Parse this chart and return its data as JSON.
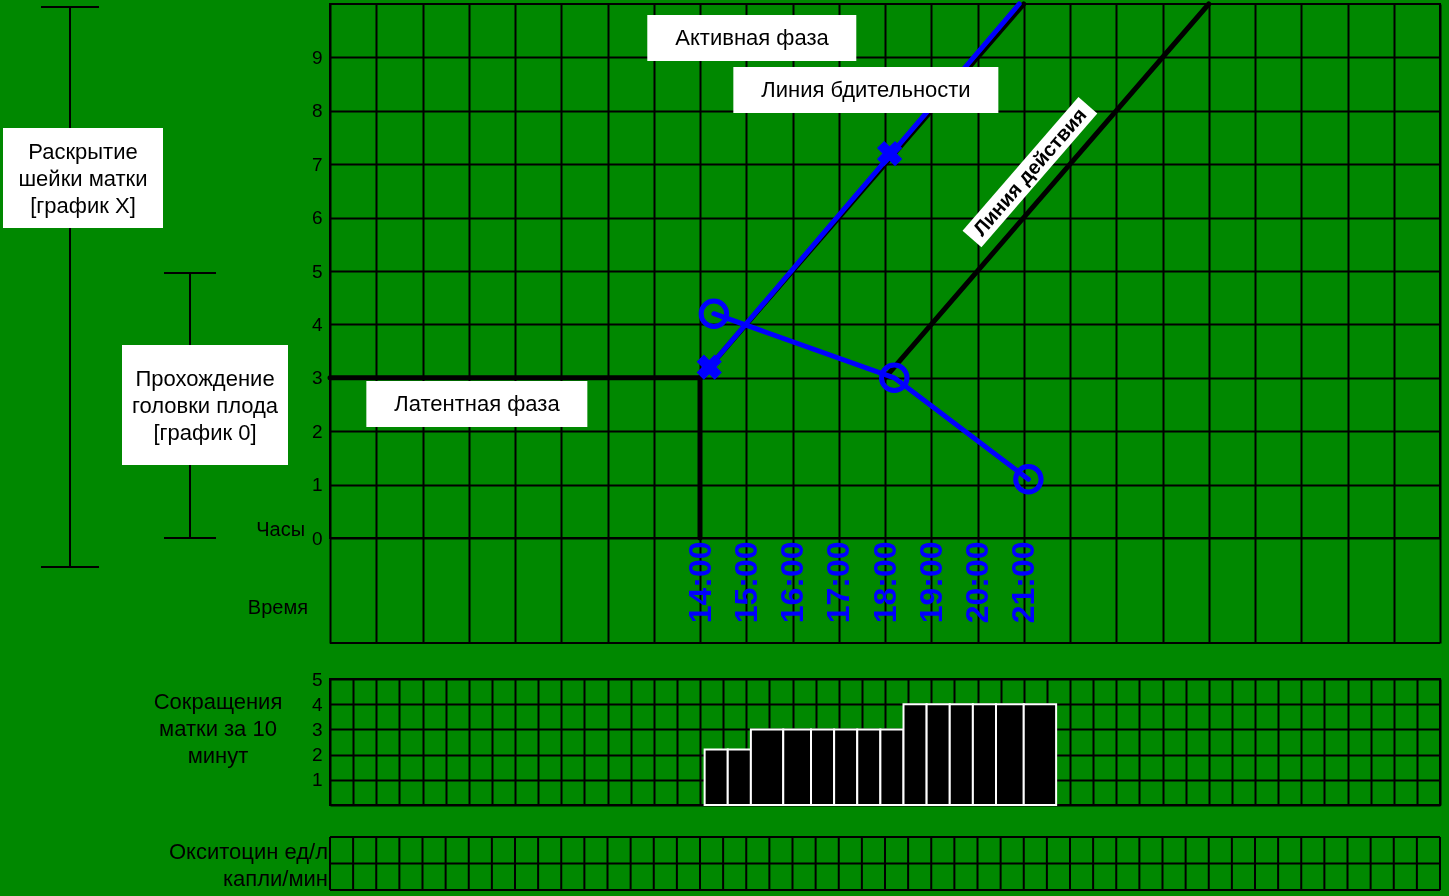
{
  "chart_data": [
    {
      "type": "line",
      "xlabel": "Время",
      "ylabel": "Раскрытие шейки матки [график X]",
      "xlim": [
        6,
        30
      ],
      "ylim": [
        0,
        10
      ],
      "xticks": [
        {
          "value": 6,
          "label": null
        },
        {
          "value": 7,
          "label": null
        },
        {
          "value": 8,
          "label": null
        },
        {
          "value": 9,
          "label": null
        },
        {
          "value": 10,
          "label": null
        },
        {
          "value": 11,
          "label": null
        },
        {
          "value": 12,
          "label": null
        },
        {
          "value": 13,
          "label": null
        },
        {
          "value": 14,
          "label": "14:00"
        },
        {
          "value": 15,
          "label": "15:00"
        },
        {
          "value": 16,
          "label": "16:00"
        },
        {
          "value": 17,
          "label": "17:00"
        },
        {
          "value": 18,
          "label": "18:00"
        },
        {
          "value": 19,
          "label": "19:00"
        },
        {
          "value": 20,
          "label": "20:00"
        },
        {
          "value": 21,
          "label": "21:00"
        },
        {
          "value": 22,
          "label": null
        },
        {
          "value": 23,
          "label": null
        },
        {
          "value": 24,
          "label": null
        },
        {
          "value": 25,
          "label": null
        },
        {
          "value": 26,
          "label": null
        },
        {
          "value": 27,
          "label": null
        },
        {
          "value": 28,
          "label": null
        },
        {
          "value": 29,
          "label": null
        },
        {
          "value": 30,
          "label": null
        }
      ],
      "yticks": [
        0,
        1,
        2,
        3,
        4,
        5,
        6,
        7,
        8,
        9
      ],
      "grid": true,
      "series": [
        {
          "type": "line",
          "color": "#000000",
          "marker": "none",
          "x": [
            6,
            14,
            14
          ],
          "values": [
            3,
            3,
            0
          ]
        },
        {
          "type": "line",
          "color": "#000000",
          "marker": "none",
          "x": [
            14,
            21
          ],
          "values": [
            3,
            10
          ]
        },
        {
          "type": "line",
          "color": "#000000",
          "marker": "none",
          "x": [
            18,
            25
          ],
          "values": [
            3,
            10
          ]
        },
        {
          "type": "line",
          "color": "#0000ff",
          "marker": "none",
          "x": [
            14.2,
            20.9
          ],
          "values": [
            3.2,
            10
          ]
        },
        {
          "type": "scatter",
          "color": "#0000ff",
          "marker": "cross",
          "x": [
            14.2,
            18.1
          ],
          "values": [
            3.2,
            7.2
          ]
        },
        {
          "type": "line",
          "color": "#0000ff",
          "marker": "circle",
          "x": [
            14.3,
            18.2,
            21.1
          ],
          "values": [
            4.2,
            3.0,
            1.1
          ]
        }
      ],
      "annotations": [
        "Латентная фаза",
        "Активная фаза",
        "Линия бдительности",
        "Линия действия",
        "Прохождение головки плода [график 0]",
        "Часы"
      ]
    },
    {
      "type": "histogram",
      "ylabel": "Сокращения матки за 10 минут",
      "xlim": [
        6,
        30
      ],
      "ylim": [
        0,
        5
      ],
      "color": "#000000",
      "xticks": [
        6,
        6.5,
        7,
        7.5,
        8,
        8.5,
        9,
        9.5,
        10,
        10.5,
        11,
        11.5,
        12,
        12.5,
        13,
        13.5,
        14,
        14.5,
        15,
        15.5,
        16,
        16.5,
        17,
        17.5,
        18,
        18.5,
        19,
        19.5,
        20,
        20.5,
        21,
        21.5,
        22,
        22.5,
        23,
        23.5,
        24,
        24.5,
        25,
        25.5,
        26,
        26.5,
        27,
        27.5,
        28,
        28.5,
        29,
        29.5,
        30
      ],
      "yticks": [
        {
          "value": 0,
          "label": null
        },
        1,
        2,
        3,
        4,
        5
      ],
      "tick_labels": "y",
      "grid": true,
      "bins": [
        14.1,
        14.6,
        15.1,
        15.8,
        16.4,
        16.9,
        17.4,
        17.9,
        18.4,
        18.9,
        19.4,
        19.9,
        20.4,
        21.0,
        21.7
      ],
      "values": [
        2.2,
        2.2,
        3,
        3,
        3,
        3,
        3,
        3,
        4,
        4,
        4,
        4,
        4,
        4
      ]
    },
    {
      "type": "other",
      "ylabel": "Окситоцин ед/л капли/мин"
    }
  ]
}
